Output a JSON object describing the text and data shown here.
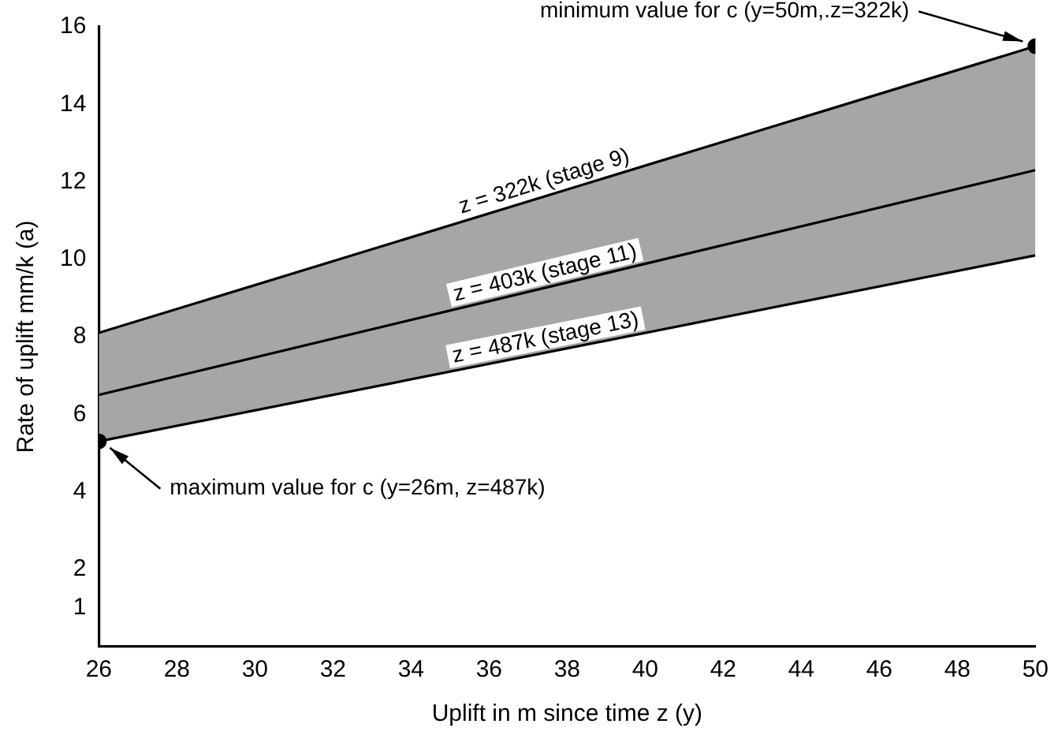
{
  "chart_data": {
    "type": "line",
    "xlabel": "Uplift in m since time z (y)",
    "ylabel": "Rate of uplift mm/k (a)",
    "x": [
      26,
      50
    ],
    "series": [
      {
        "name": "z = 322k (stage 9)",
        "color": "#000000",
        "values": [
          8.1,
          15.5
        ]
      },
      {
        "name": "z = 403k (stage 11)",
        "color": "#000000",
        "values": [
          6.5,
          12.3
        ],
        "lower": [
          5.3,
          10.1
        ],
        "upper": [
          8.1,
          15.5
        ]
      },
      {
        "name": "z = 487k (stage 13)",
        "color": "#000000",
        "values": [
          5.3,
          10.1
        ]
      },
      {
        "type": "scatter",
        "marker": "circle",
        "color": "#000000",
        "x": [
          26,
          50
        ],
        "values": [
          5.3,
          15.5
        ]
      }
    ],
    "xlim": [
      26,
      50
    ],
    "xticks": [
      26,
      28,
      30,
      32,
      34,
      36,
      38,
      40,
      42,
      44,
      46,
      48,
      50
    ],
    "ylim": [
      0,
      16
    ],
    "yticks": [
      1,
      2,
      4,
      6,
      8,
      10,
      12,
      14,
      16
    ],
    "annotations": [
      {
        "text": "minimum value for c (y=50m,.z=322k)",
        "x": 50,
        "y": 15.5
      },
      {
        "text": "maximum value for c (y=26m, z=487k)",
        "x": 26,
        "y": 5.3
      }
    ],
    "grid": false,
    "legend": false,
    "marker": "none",
    "line_style": "solid"
  }
}
